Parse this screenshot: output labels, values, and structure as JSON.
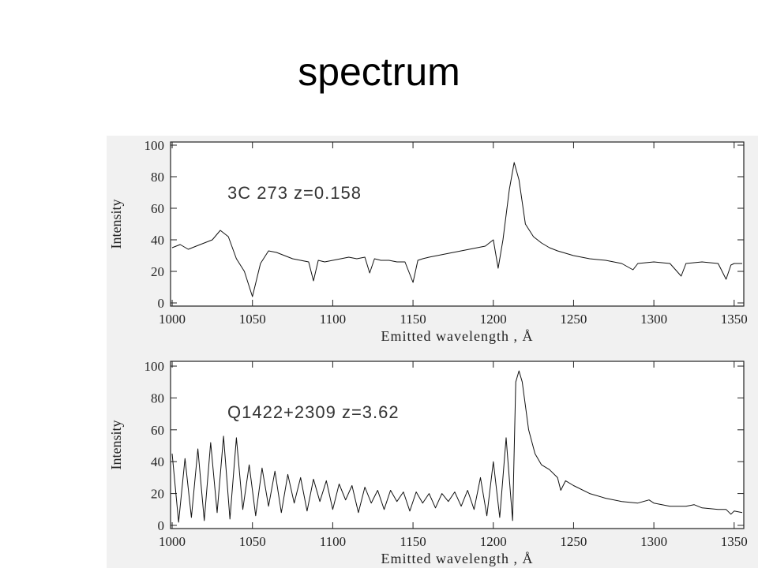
{
  "title": "spectrum",
  "chart_data": [
    {
      "type": "line",
      "annotation": "3C 273 z=0.158",
      "xlabel": "Emitted wavelength , Å",
      "ylabel": "Intensity",
      "color": "#111111",
      "xlim": [
        999,
        1356
      ],
      "ylim": [
        -2,
        102
      ],
      "xticks": [
        1000,
        1050,
        1100,
        1150,
        1200,
        1250,
        1300,
        1350
      ],
      "yticks": [
        0,
        20,
        40,
        60,
        80,
        100
      ],
      "x": [
        1000,
        1005,
        1010,
        1015,
        1020,
        1025,
        1030,
        1035,
        1040,
        1045,
        1050,
        1055,
        1060,
        1065,
        1070,
        1075,
        1080,
        1085,
        1088,
        1091,
        1095,
        1100,
        1105,
        1110,
        1115,
        1120,
        1123,
        1126,
        1130,
        1135,
        1140,
        1145,
        1150,
        1153,
        1156,
        1160,
        1165,
        1170,
        1175,
        1180,
        1185,
        1190,
        1195,
        1200,
        1203,
        1206,
        1210,
        1213,
        1216,
        1220,
        1225,
        1230,
        1235,
        1240,
        1250,
        1260,
        1270,
        1280,
        1287,
        1290,
        1300,
        1310,
        1317,
        1320,
        1330,
        1340,
        1345,
        1348,
        1350,
        1355
      ],
      "values": [
        35,
        37,
        34,
        36,
        38,
        40,
        46,
        42,
        28,
        20,
        4,
        25,
        33,
        32,
        30,
        28,
        27,
        26,
        14,
        27,
        26,
        27,
        28,
        29,
        28,
        29,
        19,
        28,
        27,
        27,
        26,
        26,
        13,
        27,
        28,
        29,
        30,
        31,
        32,
        33,
        34,
        35,
        36,
        40,
        22,
        40,
        72,
        89,
        78,
        50,
        42,
        38,
        35,
        33,
        30,
        28,
        27,
        25,
        21,
        25,
        26,
        25,
        17,
        25,
        26,
        25,
        15,
        24,
        25,
        25
      ]
    },
    {
      "type": "line",
      "annotation": "Q1422+2309 z=3.62",
      "xlabel": "Emitted wavelength , Å",
      "ylabel": "Intensity",
      "color": "#111111",
      "xlim": [
        999,
        1356
      ],
      "ylim": [
        -2,
        103
      ],
      "xticks": [
        1000,
        1050,
        1100,
        1150,
        1200,
        1250,
        1300,
        1350
      ],
      "yticks": [
        0,
        20,
        40,
        60,
        80,
        100
      ],
      "x": [
        1000,
        1004,
        1008,
        1012,
        1016,
        1020,
        1024,
        1028,
        1032,
        1036,
        1040,
        1044,
        1048,
        1052,
        1056,
        1060,
        1064,
        1068,
        1072,
        1076,
        1080,
        1084,
        1088,
        1092,
        1096,
        1100,
        1104,
        1108,
        1112,
        1116,
        1120,
        1124,
        1128,
        1132,
        1136,
        1140,
        1144,
        1148,
        1152,
        1156,
        1160,
        1164,
        1168,
        1172,
        1176,
        1180,
        1184,
        1188,
        1192,
        1196,
        1200,
        1204,
        1208,
        1212,
        1214,
        1216,
        1218,
        1222,
        1226,
        1230,
        1235,
        1240,
        1242,
        1245,
        1250,
        1260,
        1270,
        1280,
        1290,
        1297,
        1300,
        1310,
        1320,
        1325,
        1330,
        1340,
        1345,
        1348,
        1350,
        1355
      ],
      "values": [
        45,
        2,
        42,
        5,
        48,
        3,
        52,
        8,
        56,
        4,
        55,
        10,
        38,
        6,
        36,
        12,
        34,
        8,
        32,
        14,
        30,
        9,
        29,
        15,
        28,
        10,
        26,
        16,
        25,
        8,
        24,
        14,
        22,
        10,
        22,
        15,
        21,
        9,
        21,
        14,
        20,
        11,
        20,
        15,
        21,
        12,
        22,
        10,
        30,
        6,
        40,
        5,
        55,
        3,
        90,
        97,
        90,
        60,
        45,
        38,
        35,
        30,
        22,
        28,
        25,
        20,
        17,
        15,
        14,
        16,
        14,
        12,
        12,
        13,
        11,
        10,
        10,
        7,
        9,
        8
      ]
    }
  ]
}
